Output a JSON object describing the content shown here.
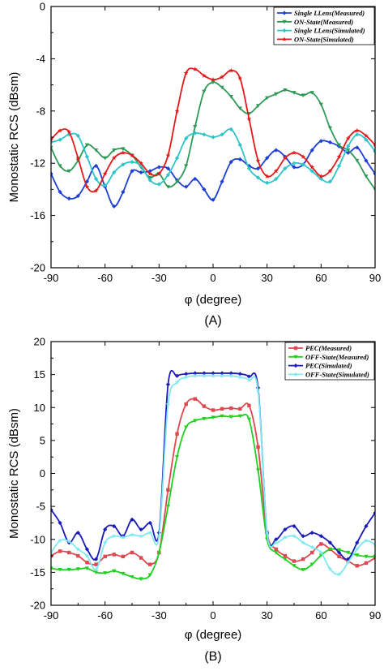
{
  "chart_data": [
    {
      "type": "line",
      "panel_label": "(A)",
      "xlabel": "φ (degree)",
      "ylabel": "Monostatic RCS (dBsm)",
      "xlim": [
        -90,
        90
      ],
      "ylim": [
        -20,
        0
      ],
      "xticks": [
        -90,
        -60,
        -30,
        0,
        30,
        60,
        90
      ],
      "yticks": [
        -20,
        -16,
        -12,
        -8,
        -4,
        0
      ],
      "grid": false,
      "legend_position": "top-right",
      "series": [
        {
          "name": "Single LLens(Measured)",
          "color": "#1f3fd6",
          "marker": "diamond",
          "x": [
            -90,
            -85,
            -80,
            -75,
            -70,
            -65,
            -60,
            -55,
            -50,
            -45,
            -40,
            -35,
            -30,
            -25,
            -20,
            -15,
            -10,
            -5,
            0,
            5,
            10,
            15,
            20,
            25,
            30,
            35,
            40,
            45,
            50,
            55,
            60,
            65,
            70,
            75,
            80,
            85,
            90
          ],
          "y": [
            -12.8,
            -14.2,
            -14.7,
            -14.5,
            -13.4,
            -12.2,
            -13.8,
            -15.3,
            -14.2,
            -12.6,
            -12.7,
            -12.6,
            -12.3,
            -12.4,
            -13.3,
            -13.8,
            -13.2,
            -14.0,
            -14.8,
            -13.4,
            -11.9,
            -11.7,
            -12.2,
            -12.4,
            -11.6,
            -11.0,
            -11.5,
            -12.3,
            -12.1,
            -11.0,
            -10.3,
            -10.4,
            -10.7,
            -11.2,
            -10.8,
            -11.8,
            -12.8
          ]
        },
        {
          "name": "ON-State(Measured)",
          "color": "#2e9a56",
          "marker": "triangle-down",
          "x": [
            -90,
            -85,
            -80,
            -75,
            -70,
            -65,
            -60,
            -55,
            -50,
            -45,
            -40,
            -35,
            -30,
            -25,
            -20,
            -15,
            -10,
            -5,
            0,
            5,
            10,
            15,
            20,
            25,
            30,
            35,
            40,
            45,
            50,
            55,
            60,
            65,
            70,
            75,
            80,
            85,
            90
          ],
          "y": [
            -10.8,
            -12.2,
            -12.6,
            -11.8,
            -10.6,
            -11.0,
            -11.6,
            -11.0,
            -10.9,
            -11.4,
            -12.3,
            -13.1,
            -12.8,
            -13.8,
            -13.4,
            -12.2,
            -9.2,
            -6.5,
            -5.8,
            -6.2,
            -6.9,
            -7.8,
            -8.2,
            -7.6,
            -7.0,
            -6.7,
            -6.4,
            -6.6,
            -6.8,
            -6.6,
            -7.5,
            -9.3,
            -10.6,
            -11.0,
            -11.8,
            -13.0,
            -14.0
          ]
        },
        {
          "name": "Single LLens(Simulated)",
          "color": "#2ec5c8",
          "marker": "diamond",
          "x": [
            -90,
            -85,
            -80,
            -75,
            -70,
            -65,
            -60,
            -55,
            -50,
            -45,
            -40,
            -35,
            -30,
            -25,
            -20,
            -15,
            -10,
            -5,
            0,
            5,
            10,
            15,
            20,
            25,
            30,
            35,
            40,
            45,
            50,
            55,
            60,
            65,
            70,
            75,
            80,
            85,
            90
          ],
          "y": [
            -10.4,
            -10.2,
            -9.8,
            -9.9,
            -11.5,
            -13.2,
            -13.7,
            -12.7,
            -12.1,
            -11.9,
            -12.2,
            -13.3,
            -13.6,
            -12.9,
            -11.6,
            -10.1,
            -9.7,
            -9.8,
            -10.0,
            -9.8,
            -9.4,
            -10.6,
            -12.4,
            -13.1,
            -13.5,
            -13.2,
            -12.4,
            -12.0,
            -12.1,
            -12.6,
            -13.2,
            -13.4,
            -12.2,
            -10.7,
            -9.8,
            -10.2,
            -11.1
          ]
        },
        {
          "name": "ON-State(Simulated)",
          "color": "#e31a1c",
          "marker": "star",
          "x": [
            -90,
            -85,
            -80,
            -75,
            -70,
            -65,
            -60,
            -55,
            -50,
            -45,
            -40,
            -35,
            -30,
            -25,
            -20,
            -15,
            -10,
            -5,
            0,
            5,
            10,
            15,
            20,
            25,
            30,
            35,
            40,
            45,
            50,
            55,
            60,
            65,
            70,
            75,
            80,
            85,
            90
          ],
          "y": [
            -10.2,
            -9.5,
            -9.6,
            -11.6,
            -13.8,
            -14.1,
            -12.8,
            -11.6,
            -11.2,
            -11.4,
            -12.0,
            -12.8,
            -12.8,
            -11.4,
            -8.0,
            -5.1,
            -4.8,
            -5.3,
            -5.6,
            -5.4,
            -4.9,
            -5.5,
            -8.6,
            -11.8,
            -13.0,
            -12.6,
            -11.6,
            -11.2,
            -11.5,
            -12.3,
            -13.0,
            -12.6,
            -11.5,
            -10.1,
            -9.5,
            -9.9,
            -10.6
          ]
        }
      ]
    },
    {
      "type": "line",
      "panel_label": "(B)",
      "xlabel": "φ (degree)",
      "ylabel": "Monostatic RCS (dBsm)",
      "xlim": [
        -90,
        90
      ],
      "ylim": [
        -20,
        20
      ],
      "xticks": [
        -90,
        -60,
        -30,
        0,
        30,
        60,
        90
      ],
      "yticks": [
        -20,
        -15,
        -10,
        -5,
        0,
        5,
        10,
        15,
        20
      ],
      "grid": false,
      "legend_position": "top-right",
      "series": [
        {
          "name": "PEC(Measured)",
          "color": "#e04850",
          "marker": "square",
          "x": [
            -90,
            -85,
            -80,
            -75,
            -70,
            -65,
            -60,
            -55,
            -50,
            -45,
            -40,
            -35,
            -30,
            -25,
            -20,
            -15,
            -10,
            -5,
            0,
            5,
            10,
            15,
            20,
            25,
            30,
            35,
            40,
            45,
            50,
            55,
            60,
            65,
            70,
            75,
            80,
            85,
            90
          ],
          "y": [
            -12.5,
            -11.8,
            -12.0,
            -12.5,
            -13.5,
            -13.8,
            -12.6,
            -12.3,
            -12.6,
            -12.0,
            -12.8,
            -13.8,
            -12.0,
            -2.5,
            6.0,
            10.5,
            11.3,
            10.2,
            9.6,
            9.8,
            9.9,
            9.8,
            10.3,
            4.0,
            -9.0,
            -11.5,
            -12.5,
            -13.3,
            -13.0,
            -12.0,
            -10.7,
            -11.5,
            -12.6,
            -13.3,
            -14.0,
            -13.6,
            -12.8
          ]
        },
        {
          "name": "OFF-State(Measured)",
          "color": "#1fd11f",
          "marker": "triangle-down",
          "x": [
            -90,
            -85,
            -80,
            -75,
            -70,
            -65,
            -60,
            -55,
            -50,
            -45,
            -40,
            -35,
            -30,
            -25,
            -20,
            -15,
            -10,
            -5,
            0,
            5,
            10,
            15,
            20,
            25,
            30,
            35,
            40,
            45,
            50,
            55,
            60,
            65,
            70,
            75,
            80,
            85,
            90
          ],
          "y": [
            -14.4,
            -14.6,
            -14.6,
            -14.5,
            -14.4,
            -15.0,
            -15.1,
            -14.8,
            -15.2,
            -15.7,
            -16.0,
            -15.4,
            -12.0,
            -5.0,
            2.5,
            7.0,
            8.0,
            8.3,
            8.5,
            8.7,
            8.6,
            8.7,
            8.2,
            0.5,
            -10.0,
            -12.0,
            -13.0,
            -14.0,
            -14.6,
            -13.8,
            -12.4,
            -11.5,
            -11.6,
            -12.0,
            -12.4,
            -12.6,
            -12.6
          ]
        },
        {
          "name": "PEC(Simulated)",
          "color": "#1a1ab8",
          "marker": "diamond",
          "x": [
            -90,
            -85,
            -80,
            -75,
            -70,
            -65,
            -60,
            -55,
            -50,
            -45,
            -40,
            -35,
            -30,
            -25,
            -20,
            -15,
            -10,
            -5,
            0,
            5,
            10,
            15,
            20,
            25,
            30,
            35,
            40,
            45,
            50,
            55,
            60,
            65,
            70,
            75,
            80,
            85,
            90
          ],
          "y": [
            -5.5,
            -7.5,
            -10.5,
            -9.0,
            -11.5,
            -13.0,
            -8.5,
            -8.0,
            -9.5,
            -7.0,
            -8.5,
            -7.5,
            -9.0,
            13.5,
            14.8,
            15.1,
            15.2,
            15.2,
            15.2,
            15.2,
            15.2,
            15.1,
            14.7,
            13.0,
            -9.0,
            -10.0,
            -8.5,
            -8.0,
            -9.5,
            -9.0,
            -9.5,
            -10.5,
            -12.0,
            -13.0,
            -10.5,
            -8.0,
            -6.0
          ]
        },
        {
          "name": "OFF-State(Simulated)",
          "color": "#7fe9f2",
          "marker": "star",
          "x": [
            -90,
            -85,
            -80,
            -75,
            -70,
            -65,
            -60,
            -55,
            -50,
            -45,
            -40,
            -35,
            -30,
            -25,
            -20,
            -15,
            -10,
            -5,
            0,
            5,
            10,
            15,
            20,
            25,
            30,
            35,
            40,
            45,
            50,
            55,
            60,
            65,
            70,
            75,
            80,
            85,
            90
          ],
          "y": [
            -12.0,
            -10.2,
            -10.3,
            -11.5,
            -12.5,
            -14.6,
            -10.5,
            -9.5,
            -9.7,
            -9.3,
            -9.5,
            -9.0,
            -9.5,
            10.5,
            13.8,
            14.6,
            14.8,
            14.8,
            14.8,
            14.8,
            14.8,
            14.6,
            14.2,
            12.5,
            -9.0,
            -10.5,
            -9.7,
            -9.5,
            -10.5,
            -11.2,
            -12.0,
            -14.5,
            -15.3,
            -13.5,
            -11.5,
            -10.2,
            -10.8
          ]
        }
      ]
    }
  ]
}
